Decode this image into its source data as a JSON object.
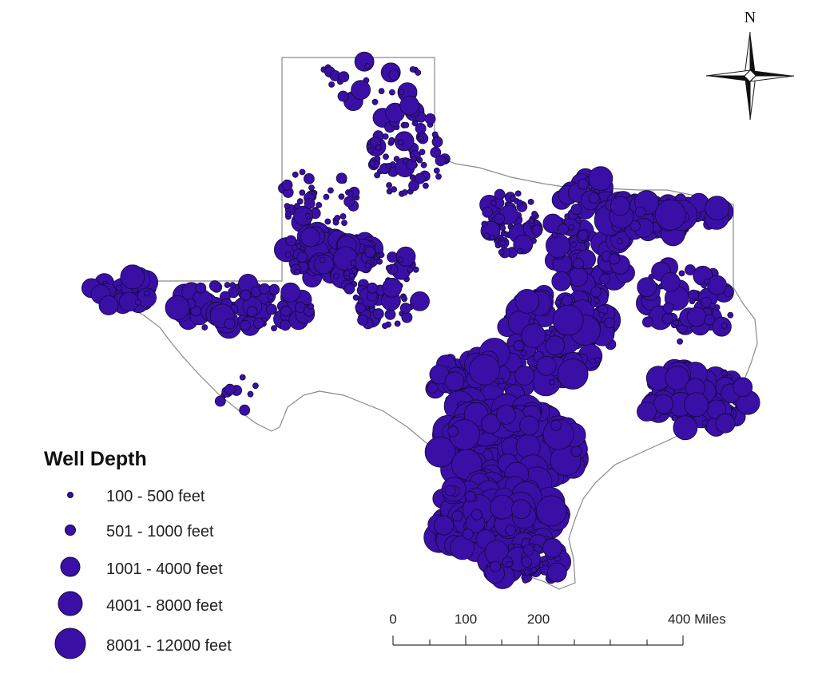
{
  "map": {
    "region": "Texas",
    "fill_color": "#ffffff",
    "border_color": "#8a8a8a",
    "marker_fill": "#3a0fa6",
    "marker_stroke": "#140838"
  },
  "legend": {
    "title": "Well Depth",
    "classes": [
      {
        "label": "100 - 500 feet",
        "min": 100,
        "max": 500
      },
      {
        "label": "501 - 1000 feet",
        "min": 501,
        "max": 1000
      },
      {
        "label": "1001 - 4000 feet",
        "min": 1001,
        "max": 4000
      },
      {
        "label": "4001 - 8000 feet",
        "min": 4001,
        "max": 8000
      },
      {
        "label": "8001 - 12000 feet",
        "min": 8001,
        "max": 12000
      }
    ]
  },
  "scale_bar": {
    "ticks": [
      "0",
      "100",
      "200",
      "400 Miles"
    ]
  },
  "north_arrow": {
    "label": "N"
  }
}
